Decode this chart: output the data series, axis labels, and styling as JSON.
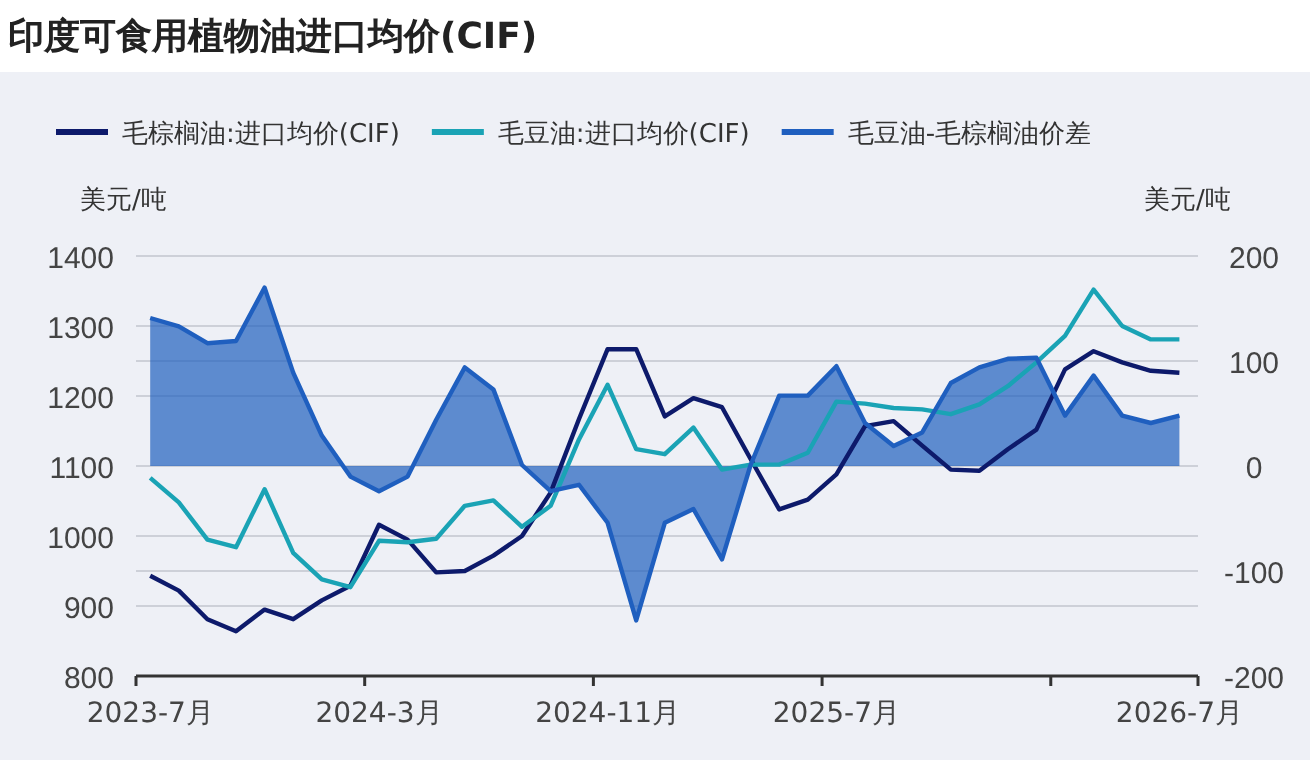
{
  "chart_data": {
    "type": "line",
    "title": "印度可食用植物油进口均价(CIF)",
    "ylabel": "美元/吨",
    "y2label": "美元/吨",
    "categories": [
      "2023-7月",
      null,
      null,
      null,
      null,
      null,
      null,
      null,
      "2024-3月",
      null,
      null,
      null,
      null,
      null,
      null,
      null,
      "2024-11月",
      null,
      null,
      null,
      null,
      null,
      null,
      null,
      "2025-7月",
      null,
      null,
      null,
      null,
      null,
      null,
      null,
      null,
      null,
      null,
      null,
      "2026-7月"
    ],
    "ylim": [
      800,
      1400
    ],
    "yticks": [
      800,
      900,
      1000,
      1100,
      1200,
      1300,
      1400
    ],
    "y2lim": [
      -200,
      200
    ],
    "y2ticks": [
      -200,
      -100,
      0,
      100,
      200
    ],
    "grid": true,
    "legend": "top",
    "marker": "none",
    "line_style": "solid",
    "series": [
      {
        "name": "毛棕榈油:进口均价(CIF)",
        "color": "#0d1a6b",
        "values": [
          943,
          922,
          881,
          864,
          895,
          881,
          908,
          929,
          1016,
          995,
          948,
          950,
          972,
          1000,
          1062,
          1167,
          1267,
          1267,
          1171,
          1197,
          1184,
          1110,
          1038,
          1052,
          1088,
          1157,
          1164,
          1129,
          1095,
          1093,
          1124,
          1152,
          1238,
          1264,
          1248,
          1236,
          1233
        ]
      },
      {
        "name": "毛豆油:进口均价(CIF)",
        "color": "#1aa3b5",
        "values": [
          1083,
          1048,
          995,
          984,
          1067,
          976,
          938,
          927,
          993,
          991,
          996,
          1043,
          1051,
          1013,
          1043,
          1138,
          1216,
          1124,
          1117,
          1155,
          1095,
          1102,
          1102,
          1119,
          1192,
          1189,
          1183,
          1181,
          1174,
          1188,
          1214,
          1248,
          1286,
          1352,
          1300,
          1281,
          1281
        ]
      },
      {
        "name": "毛豆油-毛棕榈油价差",
        "type": "area",
        "axis": "y2",
        "color": "#1f5fbf",
        "values": [
          141,
          133,
          117,
          119,
          170,
          89,
          29,
          -10,
          -24,
          -10,
          44,
          94,
          73,
          1,
          -24,
          -18,
          -54,
          -147,
          -54,
          -41,
          -89,
          1,
          67,
          67,
          95,
          41,
          19,
          32,
          79,
          94,
          102,
          103,
          48,
          86,
          48,
          41,
          48
        ]
      }
    ]
  }
}
